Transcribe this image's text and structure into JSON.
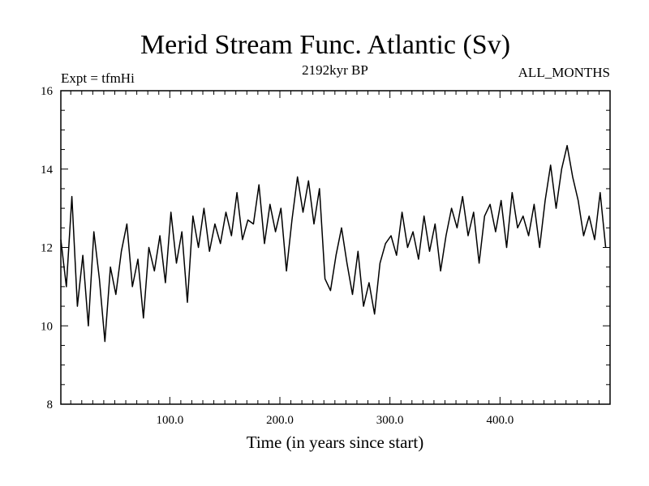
{
  "chart_data": {
    "type": "line",
    "title": "Merid Stream Func. Atlantic (Sv)",
    "subtitle_left": "Expt = tfmHi",
    "subtitle_center": "2192kyr BP",
    "subtitle_right": "ALL_MONTHS",
    "xlabel": "Time (in years since start)",
    "ylabel": "",
    "xlim": [
      1,
      500
    ],
    "ylim": [
      8,
      16
    ],
    "x_ticks": [
      100,
      200,
      300,
      400
    ],
    "x_tick_labels": [
      "100.0",
      "200.0",
      "300.0",
      "400.0"
    ],
    "y_ticks": [
      8,
      10,
      12,
      14,
      16
    ],
    "y_tick_labels": [
      "8",
      "10",
      "12",
      "14",
      "16"
    ],
    "grid": false,
    "series": [
      {
        "name": "Merid Stream Func. Atlantic",
        "color": "#000000",
        "x_start": 1,
        "x_step": 5,
        "values": [
          12.2,
          11.0,
          13.3,
          10.5,
          11.8,
          10.0,
          12.4,
          11.2,
          9.6,
          11.5,
          10.8,
          11.9,
          12.6,
          11.0,
          11.7,
          10.2,
          12.0,
          11.4,
          12.3,
          11.1,
          12.9,
          11.6,
          12.4,
          10.6,
          12.8,
          12.0,
          13.0,
          11.9,
          12.6,
          12.1,
          12.9,
          12.3,
          13.4,
          12.2,
          12.7,
          12.6,
          13.6,
          12.1,
          13.1,
          12.4,
          13.0,
          11.4,
          12.7,
          13.8,
          12.9,
          13.7,
          12.6,
          13.5,
          11.2,
          10.9,
          11.8,
          12.5,
          11.6,
          10.8,
          11.9,
          10.5,
          11.1,
          10.3,
          11.6,
          12.1,
          12.3,
          11.8,
          12.9,
          12.0,
          12.4,
          11.7,
          12.8,
          11.9,
          12.6,
          11.4,
          12.3,
          13.0,
          12.5,
          13.3,
          12.3,
          12.9,
          11.6,
          12.8,
          13.1,
          12.4,
          13.2,
          12.0,
          13.4,
          12.5,
          12.8,
          12.3,
          13.1,
          12.0,
          13.2,
          14.1,
          13.0,
          14.0,
          14.6,
          13.8,
          13.2,
          12.3,
          12.8,
          12.2,
          13.4,
          12.0
        ]
      }
    ]
  }
}
